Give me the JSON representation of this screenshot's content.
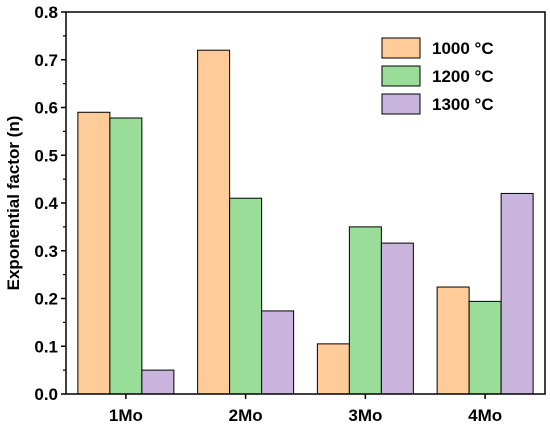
{
  "chart_data": {
    "type": "bar",
    "categories": [
      "1Mo",
      "2Mo",
      "3Mo",
      "4Mo"
    ],
    "series": [
      {
        "name": "1000 °C",
        "color": "#ffcc99",
        "values": [
          0.59,
          0.72,
          0.105,
          0.224
        ]
      },
      {
        "name": "1200 °C",
        "color": "#99dd99",
        "values": [
          0.578,
          0.41,
          0.35,
          0.194
        ]
      },
      {
        "name": "1300 °C",
        "color": "#c8b4dd",
        "values": [
          0.05,
          0.174,
          0.316,
          0.42
        ]
      }
    ],
    "ylabel": "Exponential factor (n)",
    "xlabel": "",
    "ylim": [
      0.0,
      0.8
    ],
    "yticks": [
      "0.0",
      "0.1",
      "0.2",
      "0.3",
      "0.4",
      "0.5",
      "0.6",
      "0.7",
      "0.8"
    ],
    "legend_position": "top-right",
    "grid": false
  }
}
